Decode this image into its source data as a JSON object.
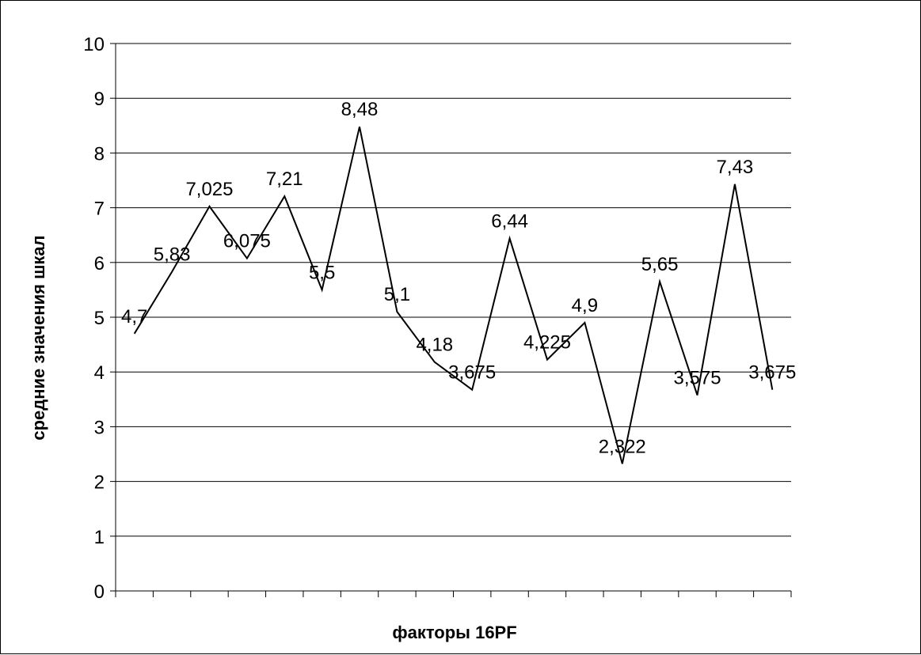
{
  "chart_data": {
    "type": "line",
    "title": "",
    "xlabel": "факторы 16PF",
    "ylabel": "средние значения шкал",
    "ylim": [
      0,
      10
    ],
    "yticks": [
      "0",
      "1",
      "2",
      "3",
      "4",
      "5",
      "6",
      "7",
      "8",
      "9",
      "10"
    ],
    "grid": true,
    "legend": "none",
    "line_color": "#000000",
    "series": [
      {
        "values": [
          4.7,
          5.83,
          7.025,
          6.075,
          7.21,
          5.5,
          8.48,
          5.1,
          4.18,
          3.675,
          6.44,
          4.225,
          4.9,
          2.322,
          5.65,
          3.575,
          7.43,
          3.675
        ],
        "labels": [
          "4,7",
          "5,83",
          "7,025",
          "6,075",
          "7,21",
          "5,5",
          "8,48",
          "5,1",
          "4,18",
          "3,675",
          "6,44",
          "4,225",
          "4,9",
          "2,322",
          "5,65",
          "3,575",
          "7,43",
          "3,675"
        ]
      }
    ]
  }
}
